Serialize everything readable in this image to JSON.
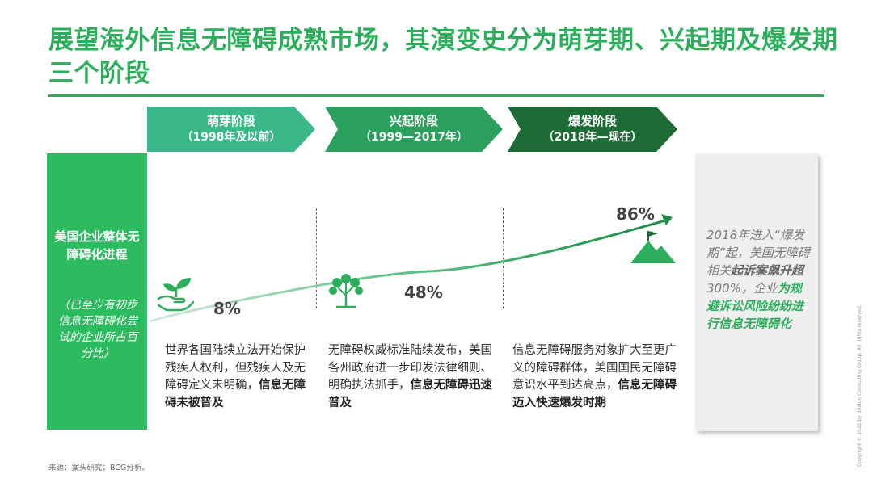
{
  "header": {
    "title": "展望海外信息无障碍成熟市场，其演变史分为萌芽期、兴起期及爆发期三个阶段"
  },
  "stages": [
    {
      "name": "萌芽阶段",
      "years": "（1998年及以前）",
      "color": "#3ab88a"
    },
    {
      "name": "兴起阶段",
      "years": "（1999—2017年）",
      "color": "#2ba05c"
    },
    {
      "name": "爆发阶段",
      "years": "（2018年—现在）",
      "color": "#1e6b36"
    }
  ],
  "side_label": {
    "main": "美国企业整体无障碍化进程",
    "note": "（已至少有初步信息无障碍化尝试的企业所占百分比）"
  },
  "chart_data": {
    "type": "line",
    "categories": [
      "萌芽阶段",
      "兴起阶段",
      "爆发阶段"
    ],
    "values": [
      8,
      48,
      86
    ],
    "value_labels": [
      "8%",
      "48%",
      "86%"
    ],
    "color": "#2dae5c"
  },
  "descriptions": [
    {
      "text": "世界各国陆续立法开始保护残疾人权利，但残疾人及无障碍定义未明确，",
      "bold": "信息无障碍未被普及"
    },
    {
      "text": "无障碍权威标准陆续发布，美国各州政府进一步印发法律细则、明确执法抓手，",
      "bold": "信息无障碍迅速普及"
    },
    {
      "text": "信息无障碍服务对象扩大至更广义的障碍群体，美国国民无障碍意识水平到达高点，",
      "bold": "信息无障碍迈入快速爆发时期"
    }
  ],
  "icons": {
    "stage1": "hand-sprout-icon",
    "stage2": "tree-icon",
    "stage3": "mountain-flag-icon"
  },
  "callout": {
    "t1": "2018年进入“爆发期”起，美国无障碍相关",
    "b1": "起诉案飙升超",
    "t2": "300%，企业",
    "g1": "为规避诉讼风险纷纷进行信息无障碍化"
  },
  "footer": {
    "source": "来源：案头研究；BCG分析。",
    "copyright": "Copyright © 2022 by Boston Consulting Group. All rights reserved."
  }
}
